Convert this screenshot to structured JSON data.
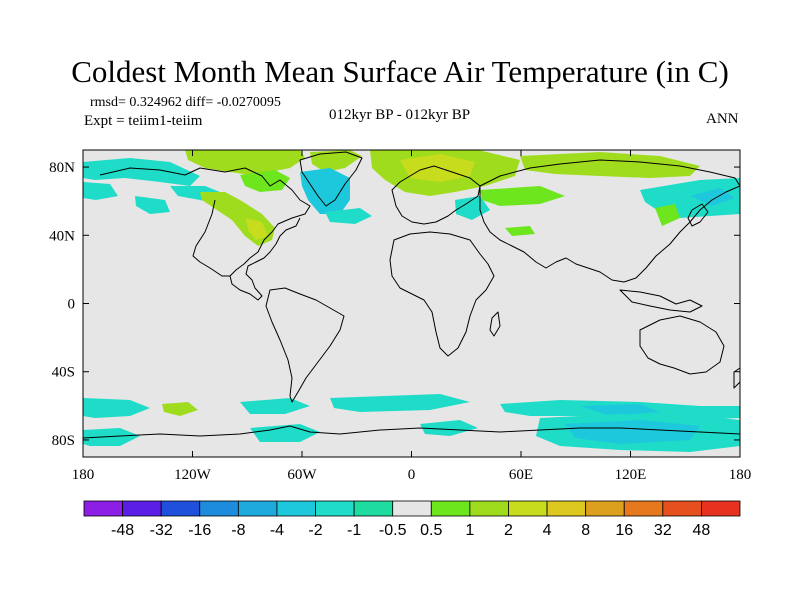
{
  "title": "Coldest Month Mean Surface Air Temperature (in C)",
  "stats_line": "rmsd= 0.324962 diff= -0.0270095",
  "experiment": "Expt = teiim1-teiim",
  "period": "012kyr BP - 012kyr BP",
  "season": "ANN",
  "map": {
    "projection": "cylindrical equidistant",
    "lon_range": [
      -180,
      180
    ],
    "lat_range": [
      -90,
      90
    ],
    "lon_ticks": [
      {
        "value": -180,
        "label": "180"
      },
      {
        "value": -120,
        "label": "120W"
      },
      {
        "value": -60,
        "label": "60W"
      },
      {
        "value": 0,
        "label": "0"
      },
      {
        "value": 60,
        "label": "60E"
      },
      {
        "value": 120,
        "label": "120E"
      },
      {
        "value": 180,
        "label": "180"
      }
    ],
    "lat_ticks": [
      {
        "value": 80,
        "label": "80N"
      },
      {
        "value": 40,
        "label": "40N"
      },
      {
        "value": 0,
        "label": "0"
      },
      {
        "value": -40,
        "label": "40S"
      },
      {
        "value": -80,
        "label": "80S"
      }
    ],
    "background_color": "#e6e6e6",
    "coastline_color": "#000000"
  },
  "colorbar": {
    "labels": [
      "-48",
      "-32",
      "-16",
      "-8",
      "-4",
      "-2",
      "-1",
      "-0.5",
      "0.5",
      "1",
      "2",
      "4",
      "8",
      "16",
      "32",
      "48"
    ],
    "colors": [
      "#8c1ee6",
      "#5a1ee6",
      "#1e50dc",
      "#1e8cdc",
      "#1eaadc",
      "#1ec8dc",
      "#1edcc8",
      "#1edca0",
      "#e6e6e6",
      "#6ee61e",
      "#a0dc1e",
      "#c8dc1e",
      "#dcc81e",
      "#dca01e",
      "#e6781e",
      "#e6501e",
      "#e6321e"
    ]
  },
  "anomaly_colors": {
    "cyan": "#1edcc8",
    "teal": "#1ec8dc",
    "light_green": "#6ee61e",
    "green": "#a0dc1e",
    "yellow_green": "#c8dc1e"
  }
}
